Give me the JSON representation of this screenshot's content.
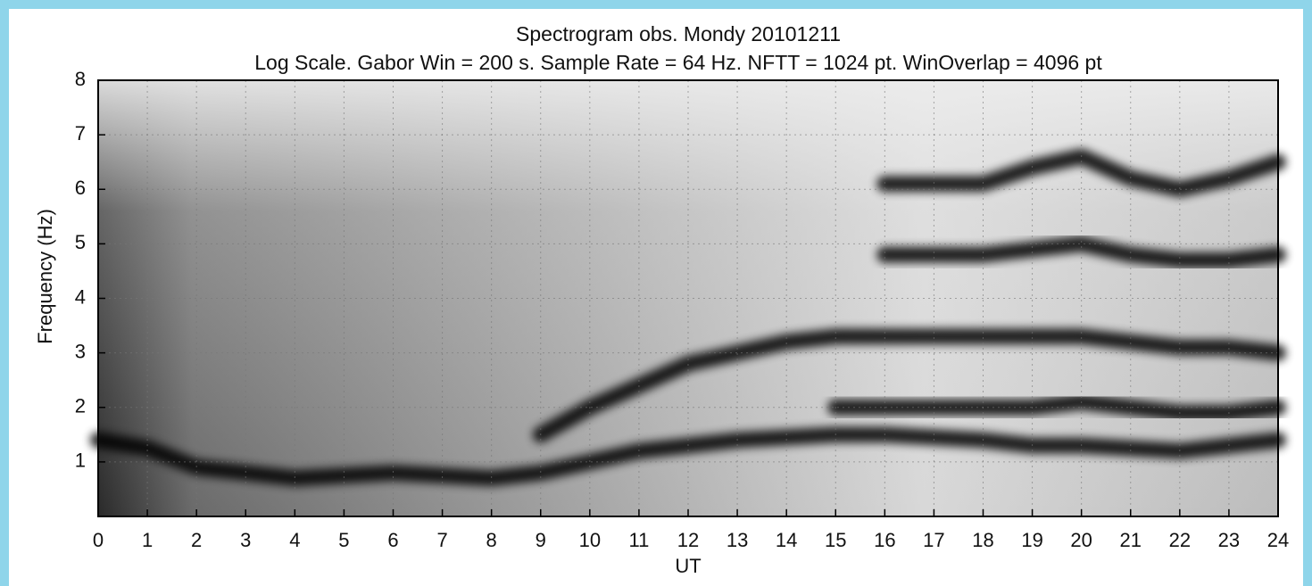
{
  "chart_data": {
    "type": "spectrogram",
    "title": "Spectrogram obs. Mondy 20101211",
    "subtitle": "Log Scale. Gabor Win = 200 s. Sample Rate = 64 Hz. NFTT = 1024 pt. WinOverlap = 4096 pt",
    "x_label": "UT",
    "y_label": "Frequency (Hz)",
    "x": [
      0,
      1,
      2,
      3,
      4,
      5,
      6,
      7,
      8,
      9,
      10,
      11,
      12,
      13,
      14,
      15,
      16,
      17,
      18,
      19,
      20,
      21,
      22,
      23,
      24
    ],
    "series": [
      {
        "color": "#000000",
        "values": [
          1.4,
          1.25,
          0.9,
          0.8,
          0.7,
          0.75,
          0.8,
          0.75,
          0.7,
          0.8,
          1.0,
          1.2,
          1.3,
          1.4,
          1.45,
          1.5,
          1.5,
          1.45,
          1.4,
          1.3,
          1.3,
          1.25,
          1.2,
          1.3,
          1.4
        ]
      },
      {
        "color": "#000000",
        "values": [
          null,
          null,
          null,
          null,
          null,
          null,
          null,
          null,
          null,
          1.5,
          2.0,
          2.4,
          2.8,
          3.0,
          3.2,
          3.3,
          3.3,
          3.3,
          3.3,
          3.3,
          3.3,
          3.2,
          3.1,
          3.1,
          3.0
        ]
      },
      {
        "color": "#000000",
        "values": [
          null,
          null,
          null,
          null,
          null,
          null,
          null,
          null,
          null,
          null,
          null,
          null,
          null,
          null,
          null,
          2.0,
          2.0,
          2.0,
          2.0,
          2.0,
          2.1,
          2.0,
          1.9,
          1.9,
          2.0
        ]
      },
      {
        "color": "#000000",
        "values": [
          null,
          null,
          null,
          null,
          null,
          null,
          null,
          null,
          null,
          null,
          null,
          null,
          null,
          null,
          null,
          null,
          4.8,
          4.8,
          4.8,
          4.9,
          5.0,
          4.8,
          4.7,
          4.7,
          4.8
        ]
      },
      {
        "color": "#000000",
        "values": [
          null,
          null,
          null,
          null,
          null,
          null,
          null,
          null,
          null,
          null,
          null,
          null,
          null,
          null,
          null,
          null,
          6.1,
          6.1,
          6.1,
          6.4,
          6.6,
          6.2,
          6.0,
          6.2,
          6.5
        ]
      }
    ],
    "xlim": [
      0,
      24
    ],
    "ylim": [
      0,
      8
    ],
    "xticks": [
      0,
      1,
      2,
      3,
      4,
      5,
      6,
      7,
      8,
      9,
      10,
      11,
      12,
      13,
      14,
      15,
      16,
      17,
      18,
      19,
      20,
      21,
      22,
      23,
      24
    ],
    "yticks": [
      1,
      2,
      3,
      4,
      5,
      6,
      7,
      8
    ],
    "grid": true
  }
}
